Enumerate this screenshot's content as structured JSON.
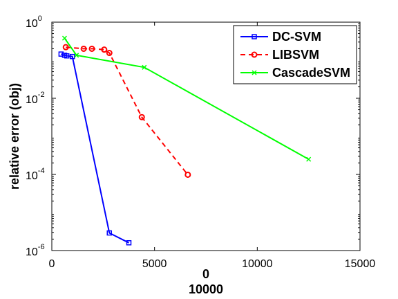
{
  "chart_data": {
    "type": "line",
    "title": "",
    "xlabel_lines": [
      "0",
      "10000"
    ],
    "ylabel": "relative error (obj)",
    "xscale": "linear",
    "yscale": "log",
    "xlim": [
      0,
      15000
    ],
    "ylim": [
      1e-06,
      1
    ],
    "x_ticks": [
      0,
      5000,
      10000,
      15000
    ],
    "x_tick_labels": [
      "0",
      "5000",
      "10000",
      "15000"
    ],
    "y_ticks": [
      1e-06,
      0.0001,
      0.01,
      1
    ],
    "y_tick_labels": [
      {
        "base": "10",
        "exp": "-6"
      },
      {
        "base": "10",
        "exp": "-4"
      },
      {
        "base": "10",
        "exp": "-2"
      },
      {
        "base": "10",
        "exp": "0"
      }
    ],
    "grid": false,
    "legend_position": "top-right",
    "series": [
      {
        "name": "DC-SVM",
        "color": "#0000ff",
        "line_style": "solid",
        "marker": "square",
        "x": [
          450,
          620,
          730,
          1000,
          2800,
          3750
        ],
        "y": [
          0.145,
          0.135,
          0.13,
          0.125,
          2.9e-06,
          1.6e-06
        ]
      },
      {
        "name": "LIBSVM",
        "color": "#ff0000",
        "line_style": "dashed",
        "marker": "circle",
        "x": [
          680,
          1550,
          1950,
          2550,
          2800,
          4380,
          6620
        ],
        "y": [
          0.22,
          0.2,
          0.2,
          0.19,
          0.155,
          0.0032,
          9.8e-05
        ]
      },
      {
        "name": "CascadeSVM",
        "color": "#00ff00",
        "line_style": "solid",
        "marker": "x",
        "x": [
          620,
          1200,
          4500,
          12500
        ],
        "y": [
          0.38,
          0.135,
          0.065,
          0.00025
        ]
      }
    ]
  }
}
